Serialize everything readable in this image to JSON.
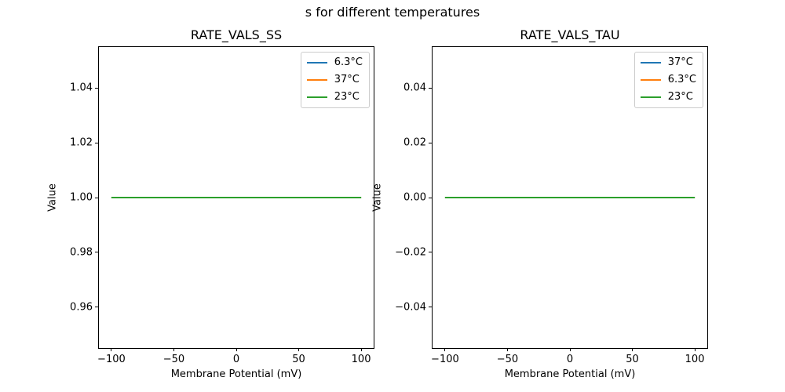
{
  "figure": {
    "suptitle": "s for different temperatures",
    "background_color": "#ffffff",
    "text_color": "#000000",
    "spine_color": "#000000",
    "legend_border_color": "#cccccc"
  },
  "chart_data": [
    {
      "type": "line",
      "title": "RATE_VALS_SS",
      "xlabel": "Membrane Potential (mV)",
      "ylabel": "Value",
      "xlim": [
        -110,
        110
      ],
      "ylim": [
        0.945,
        1.055
      ],
      "grid": false,
      "legend_position": "upper-right",
      "xticks": {
        "values": [
          -100,
          -50,
          0,
          50,
          100
        ],
        "labels": [
          "−100",
          "−50",
          "0",
          "50",
          "100"
        ]
      },
      "yticks": {
        "values": [
          0.96,
          0.98,
          1.0,
          1.02,
          1.04
        ],
        "labels": [
          "0.96",
          "0.98",
          "1.00",
          "1.02",
          "1.04"
        ]
      },
      "series": [
        {
          "name": "6.3°C",
          "color": "#1f77b4",
          "x": [
            -100,
            100
          ],
          "y": [
            1.0,
            1.0
          ]
        },
        {
          "name": "37°C",
          "color": "#ff7f0e",
          "x": [
            -100,
            100
          ],
          "y": [
            1.0,
            1.0
          ]
        },
        {
          "name": "23°C",
          "color": "#2ca02c",
          "x": [
            -100,
            100
          ],
          "y": [
            1.0,
            1.0
          ]
        }
      ]
    },
    {
      "type": "line",
      "title": "RATE_VALS_TAU",
      "xlabel": "Membrane Potential (mV)",
      "ylabel": "Value",
      "xlim": [
        -110,
        110
      ],
      "ylim": [
        -0.055,
        0.055
      ],
      "grid": false,
      "legend_position": "upper-right",
      "xticks": {
        "values": [
          -100,
          -50,
          0,
          50,
          100
        ],
        "labels": [
          "−100",
          "−50",
          "0",
          "50",
          "100"
        ]
      },
      "yticks": {
        "values": [
          -0.04,
          -0.02,
          0.0,
          0.02,
          0.04
        ],
        "labels": [
          "−0.04",
          "−0.02",
          "0.00",
          "0.02",
          "0.04"
        ]
      },
      "series": [
        {
          "name": "37°C",
          "color": "#1f77b4",
          "x": [
            -100,
            100
          ],
          "y": [
            0.0,
            0.0
          ]
        },
        {
          "name": "6.3°C",
          "color": "#ff7f0e",
          "x": [
            -100,
            100
          ],
          "y": [
            0.0,
            0.0
          ]
        },
        {
          "name": "23°C",
          "color": "#2ca02c",
          "x": [
            -100,
            100
          ],
          "y": [
            0.0,
            0.0
          ]
        }
      ]
    }
  ]
}
